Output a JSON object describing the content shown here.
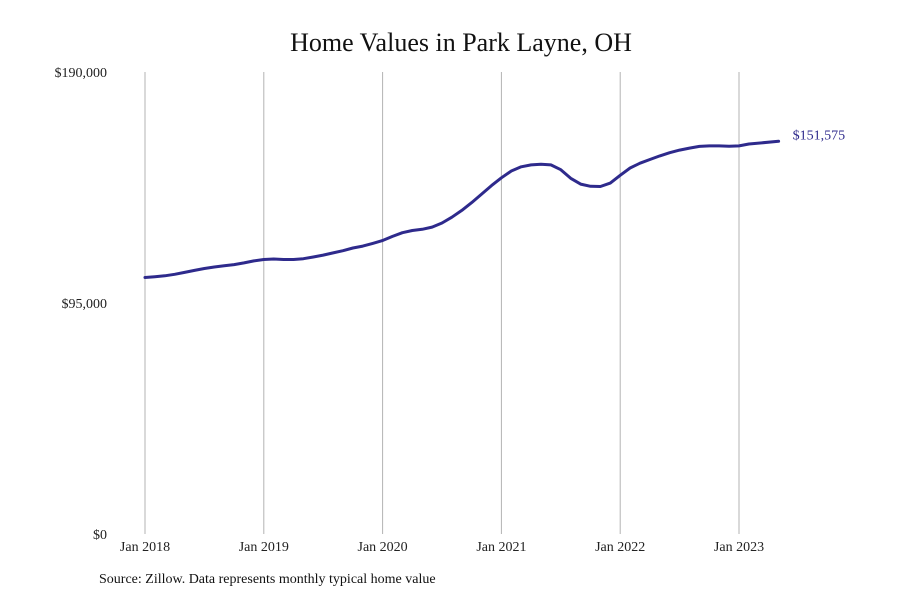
{
  "colors": {
    "line": "#2e2a8c",
    "grid": "#b3b3b3",
    "background": "#ffffff"
  },
  "chart_data": {
    "type": "line",
    "title": "Home Values in Park Layne, OH",
    "xlabel": "",
    "ylabel": "",
    "ylim": [
      0,
      190000
    ],
    "yticks": [
      {
        "value": 0,
        "label": "$0"
      },
      {
        "value": 95000,
        "label": "$95,000"
      },
      {
        "value": 190000,
        "label": "$190,000"
      }
    ],
    "xticks": [
      {
        "value": "2018-01",
        "label": "Jan 2018"
      },
      {
        "value": "2019-01",
        "label": "Jan 2019"
      },
      {
        "value": "2020-01",
        "label": "Jan 2020"
      },
      {
        "value": "2021-01",
        "label": "Jan 2021"
      },
      {
        "value": "2022-01",
        "label": "Jan 2022"
      },
      {
        "value": "2023-01",
        "label": "Jan 2023"
      }
    ],
    "grid": "vertical",
    "series": [
      {
        "x": [
          "2018-01",
          "2018-02",
          "2018-03",
          "2018-04",
          "2018-05",
          "2018-06",
          "2018-07",
          "2018-08",
          "2018-09",
          "2018-10",
          "2018-11",
          "2018-12",
          "2019-01",
          "2019-02",
          "2019-03",
          "2019-04",
          "2019-05",
          "2019-06",
          "2019-07",
          "2019-08",
          "2019-09",
          "2019-10",
          "2019-11",
          "2019-12",
          "2020-01",
          "2020-02",
          "2020-03",
          "2020-04",
          "2020-05",
          "2020-06",
          "2020-07",
          "2020-08",
          "2020-09",
          "2020-10",
          "2020-11",
          "2020-12",
          "2021-01",
          "2021-02",
          "2021-03",
          "2021-04",
          "2021-05",
          "2021-06",
          "2021-07",
          "2021-08",
          "2021-09",
          "2021-10",
          "2021-11",
          "2021-12",
          "2022-01",
          "2022-02",
          "2022-03",
          "2022-04",
          "2022-05",
          "2022-06",
          "2022-07",
          "2022-08",
          "2022-09",
          "2022-10",
          "2022-11",
          "2022-12",
          "2023-01",
          "2023-02",
          "2023-03",
          "2023-04",
          "2023-05"
        ],
        "values": [
          105500,
          105800,
          106200,
          106800,
          107600,
          108400,
          109200,
          109800,
          110300,
          110800,
          111500,
          112300,
          112900,
          113100,
          112900,
          112900,
          113200,
          113900,
          114700,
          115600,
          116500,
          117600,
          118400,
          119500,
          120700,
          122400,
          123900,
          124800,
          125300,
          126200,
          127900,
          130300,
          133100,
          136300,
          139800,
          143300,
          146500,
          149300,
          151000,
          151800,
          152100,
          151800,
          149800,
          146300,
          143900,
          143000,
          142900,
          144300,
          147500,
          150500,
          152500,
          154000,
          155500,
          156800,
          157900,
          158700,
          159400,
          159600,
          159600,
          159500,
          159600,
          160400,
          151575,
          151575,
          151575
        ]
      }
    ],
    "end_label": "$151,575"
  },
  "footer": {
    "source": "Source: Zillow. Data represents monthly typical home value"
  }
}
